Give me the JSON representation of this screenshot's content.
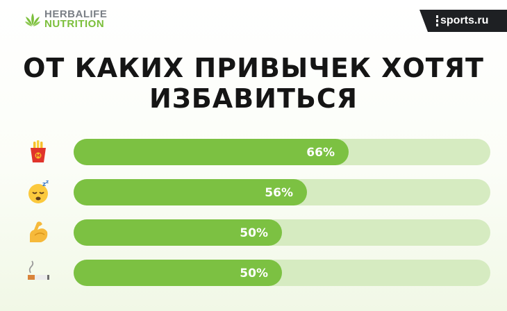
{
  "brand": {
    "line1": "HERBALIFE",
    "line2": "NUTRITION",
    "leaf_icon": "herbalife-leaf-icon",
    "accent": "#7bbf3b"
  },
  "source_badge": {
    "text": "sports.ru",
    "background": "#1e2023"
  },
  "chart_data": {
    "type": "bar",
    "orientation": "horizontal",
    "title_lines": [
      "ОТ КАКИХ ПРИВЫЧЕК ХОТЯТ",
      "ИЗБАВИТЬСЯ"
    ],
    "categories": [
      "fries-icon",
      "sleeping-face-icon",
      "flexed-biceps-icon",
      "cigarette-icon"
    ],
    "values": [
      66,
      56,
      50,
      50
    ],
    "labels": [
      "66%",
      "56%",
      "50%",
      "50%"
    ],
    "xlim": [
      0,
      100
    ],
    "grid": false,
    "bar_color": "#7cc142",
    "track_color": "#d6ebc1"
  }
}
